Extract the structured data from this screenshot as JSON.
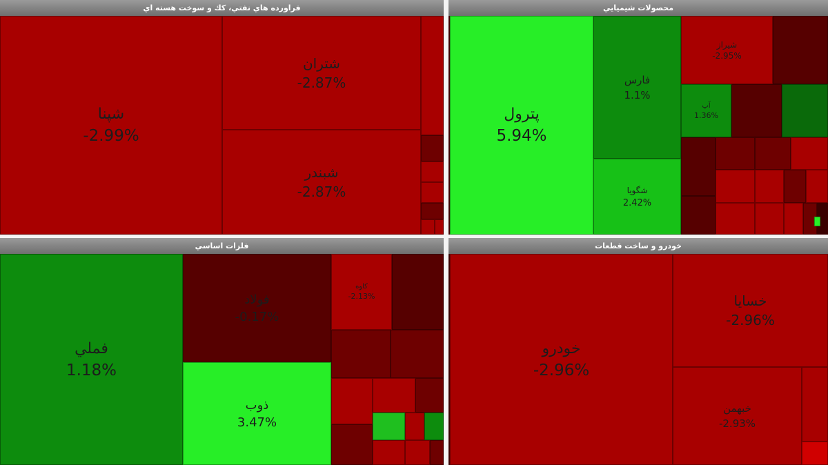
{
  "panels": [
    {
      "title": "فراورده هاي نفتي، كك و سوخت هسته اي",
      "tiles": [
        {
          "label": "شپنا",
          "change": "-2.99%"
        },
        {
          "label": "شتران",
          "change": "-2.87%"
        },
        {
          "label": "شبندر",
          "change": "-2.87%"
        }
      ]
    },
    {
      "title": "محصولات شيميايي",
      "tiles": [
        {
          "label": "پترول",
          "change": "5.94%"
        },
        {
          "label": "فارس",
          "change": "1.1%"
        },
        {
          "label": "شگويا",
          "change": "2.42%"
        },
        {
          "label": "شيراز",
          "change": "-2.95%"
        },
        {
          "label": "آپ",
          "change": "1.36%"
        }
      ]
    },
    {
      "title": "فلزات اساسي",
      "tiles": [
        {
          "label": "فملي",
          "change": "1.18%"
        },
        {
          "label": "فولاد",
          "change": "-0.17%"
        },
        {
          "label": "ذوب",
          "change": "3.47%"
        },
        {
          "label": "كاوه",
          "change": "-2.13%"
        }
      ]
    },
    {
      "title": "خودرو و ساخت قطعات",
      "tiles": [
        {
          "label": "خودرو",
          "change": "-2.96%"
        },
        {
          "label": "خسايا",
          "change": "-2.96%"
        },
        {
          "label": "خبهمن",
          "change": "-2.93%"
        }
      ]
    }
  ]
}
